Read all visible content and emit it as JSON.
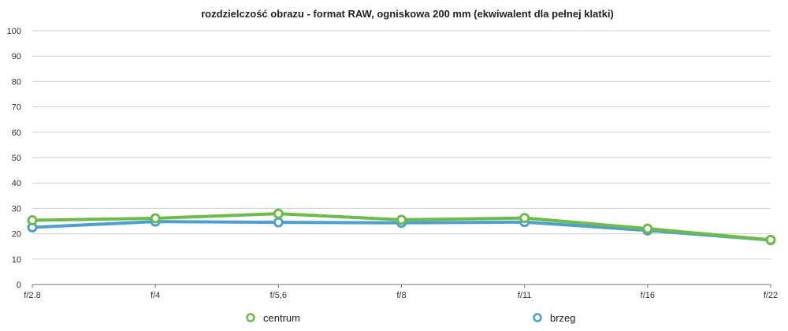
{
  "chart_data": {
    "type": "line",
    "title": "rozdzielczość obrazu - format RAW, ogniskowa 200 mm (ekwiwalent dla pełnej klatki)",
    "xlabel": "",
    "ylabel": "",
    "categories": [
      "f/2.8",
      "f/4",
      "f/5,6",
      "f/8",
      "f/11",
      "f/16",
      "f/22"
    ],
    "ylim": [
      0,
      100
    ],
    "yticks": [
      0,
      10,
      20,
      30,
      40,
      50,
      60,
      70,
      80,
      90,
      100
    ],
    "grid": true,
    "legend_position": "bottom",
    "series": [
      {
        "name": "brzeg",
        "color": "#4b9fd5",
        "values": [
          22.5,
          24.8,
          24.5,
          24.3,
          24.6,
          21.3,
          17.5
        ]
      },
      {
        "name": "centrum",
        "color": "#6cbd45",
        "values": [
          25.3,
          26.1,
          27.9,
          25.5,
          26.2,
          22.0,
          17.6
        ]
      }
    ],
    "legend": [
      "centrum",
      "brzeg"
    ]
  }
}
